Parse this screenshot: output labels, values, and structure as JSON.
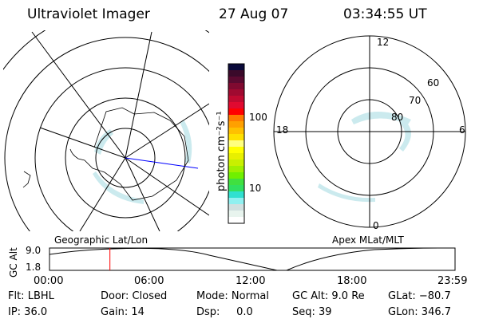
{
  "header": {
    "title": "Ultraviolet Imager",
    "date": "27 Aug 07",
    "time": "03:34:55 UT"
  },
  "colorbar": {
    "label": "photon cm⁻²s⁻¹",
    "ticks": [
      "100",
      "10"
    ],
    "colors": [
      "#0a0a3a",
      "#3a0a2a",
      "#5a0a30",
      "#800a30",
      "#a00a30",
      "#c00a30",
      "#e00a30",
      "#ff0000",
      "#ff7a00",
      "#ffa000",
      "#ffc000",
      "#ffe000",
      "#ffff80",
      "#ffff00",
      "#e8f000",
      "#c8f000",
      "#a0f000",
      "#70f000",
      "#40e040",
      "#30e060",
      "#30e0d0",
      "#90f0f0",
      "#d0e0e0",
      "#e8f4ee",
      "#ffffff"
    ]
  },
  "left_map": {
    "label": "Geographic Lat/Lon"
  },
  "right_map": {
    "label": "Apex MLat/MLT",
    "mlt": {
      "top": "12",
      "bottom": "0",
      "left": "18",
      "right": "6"
    },
    "lat": [
      "80",
      "70",
      "60"
    ]
  },
  "timeline": {
    "ylabel": "GC Alt",
    "yticks": [
      "9.0",
      "1.8"
    ],
    "xticks": [
      "00:00",
      "06:00",
      "12:00",
      "18:00",
      "23:59"
    ],
    "current_fraction": 0.149
  },
  "status": {
    "row1": [
      "Flt: LBHL",
      "Door: Closed",
      "Mode: Normal",
      "GC Alt: 9.0 Re",
      "GLat: −80.7"
    ],
    "row2": [
      "IP: 36.0",
      "Gain: 14",
      "Dsp:     0.0",
      "Seq: 39",
      "GLon: 346.7"
    ]
  }
}
